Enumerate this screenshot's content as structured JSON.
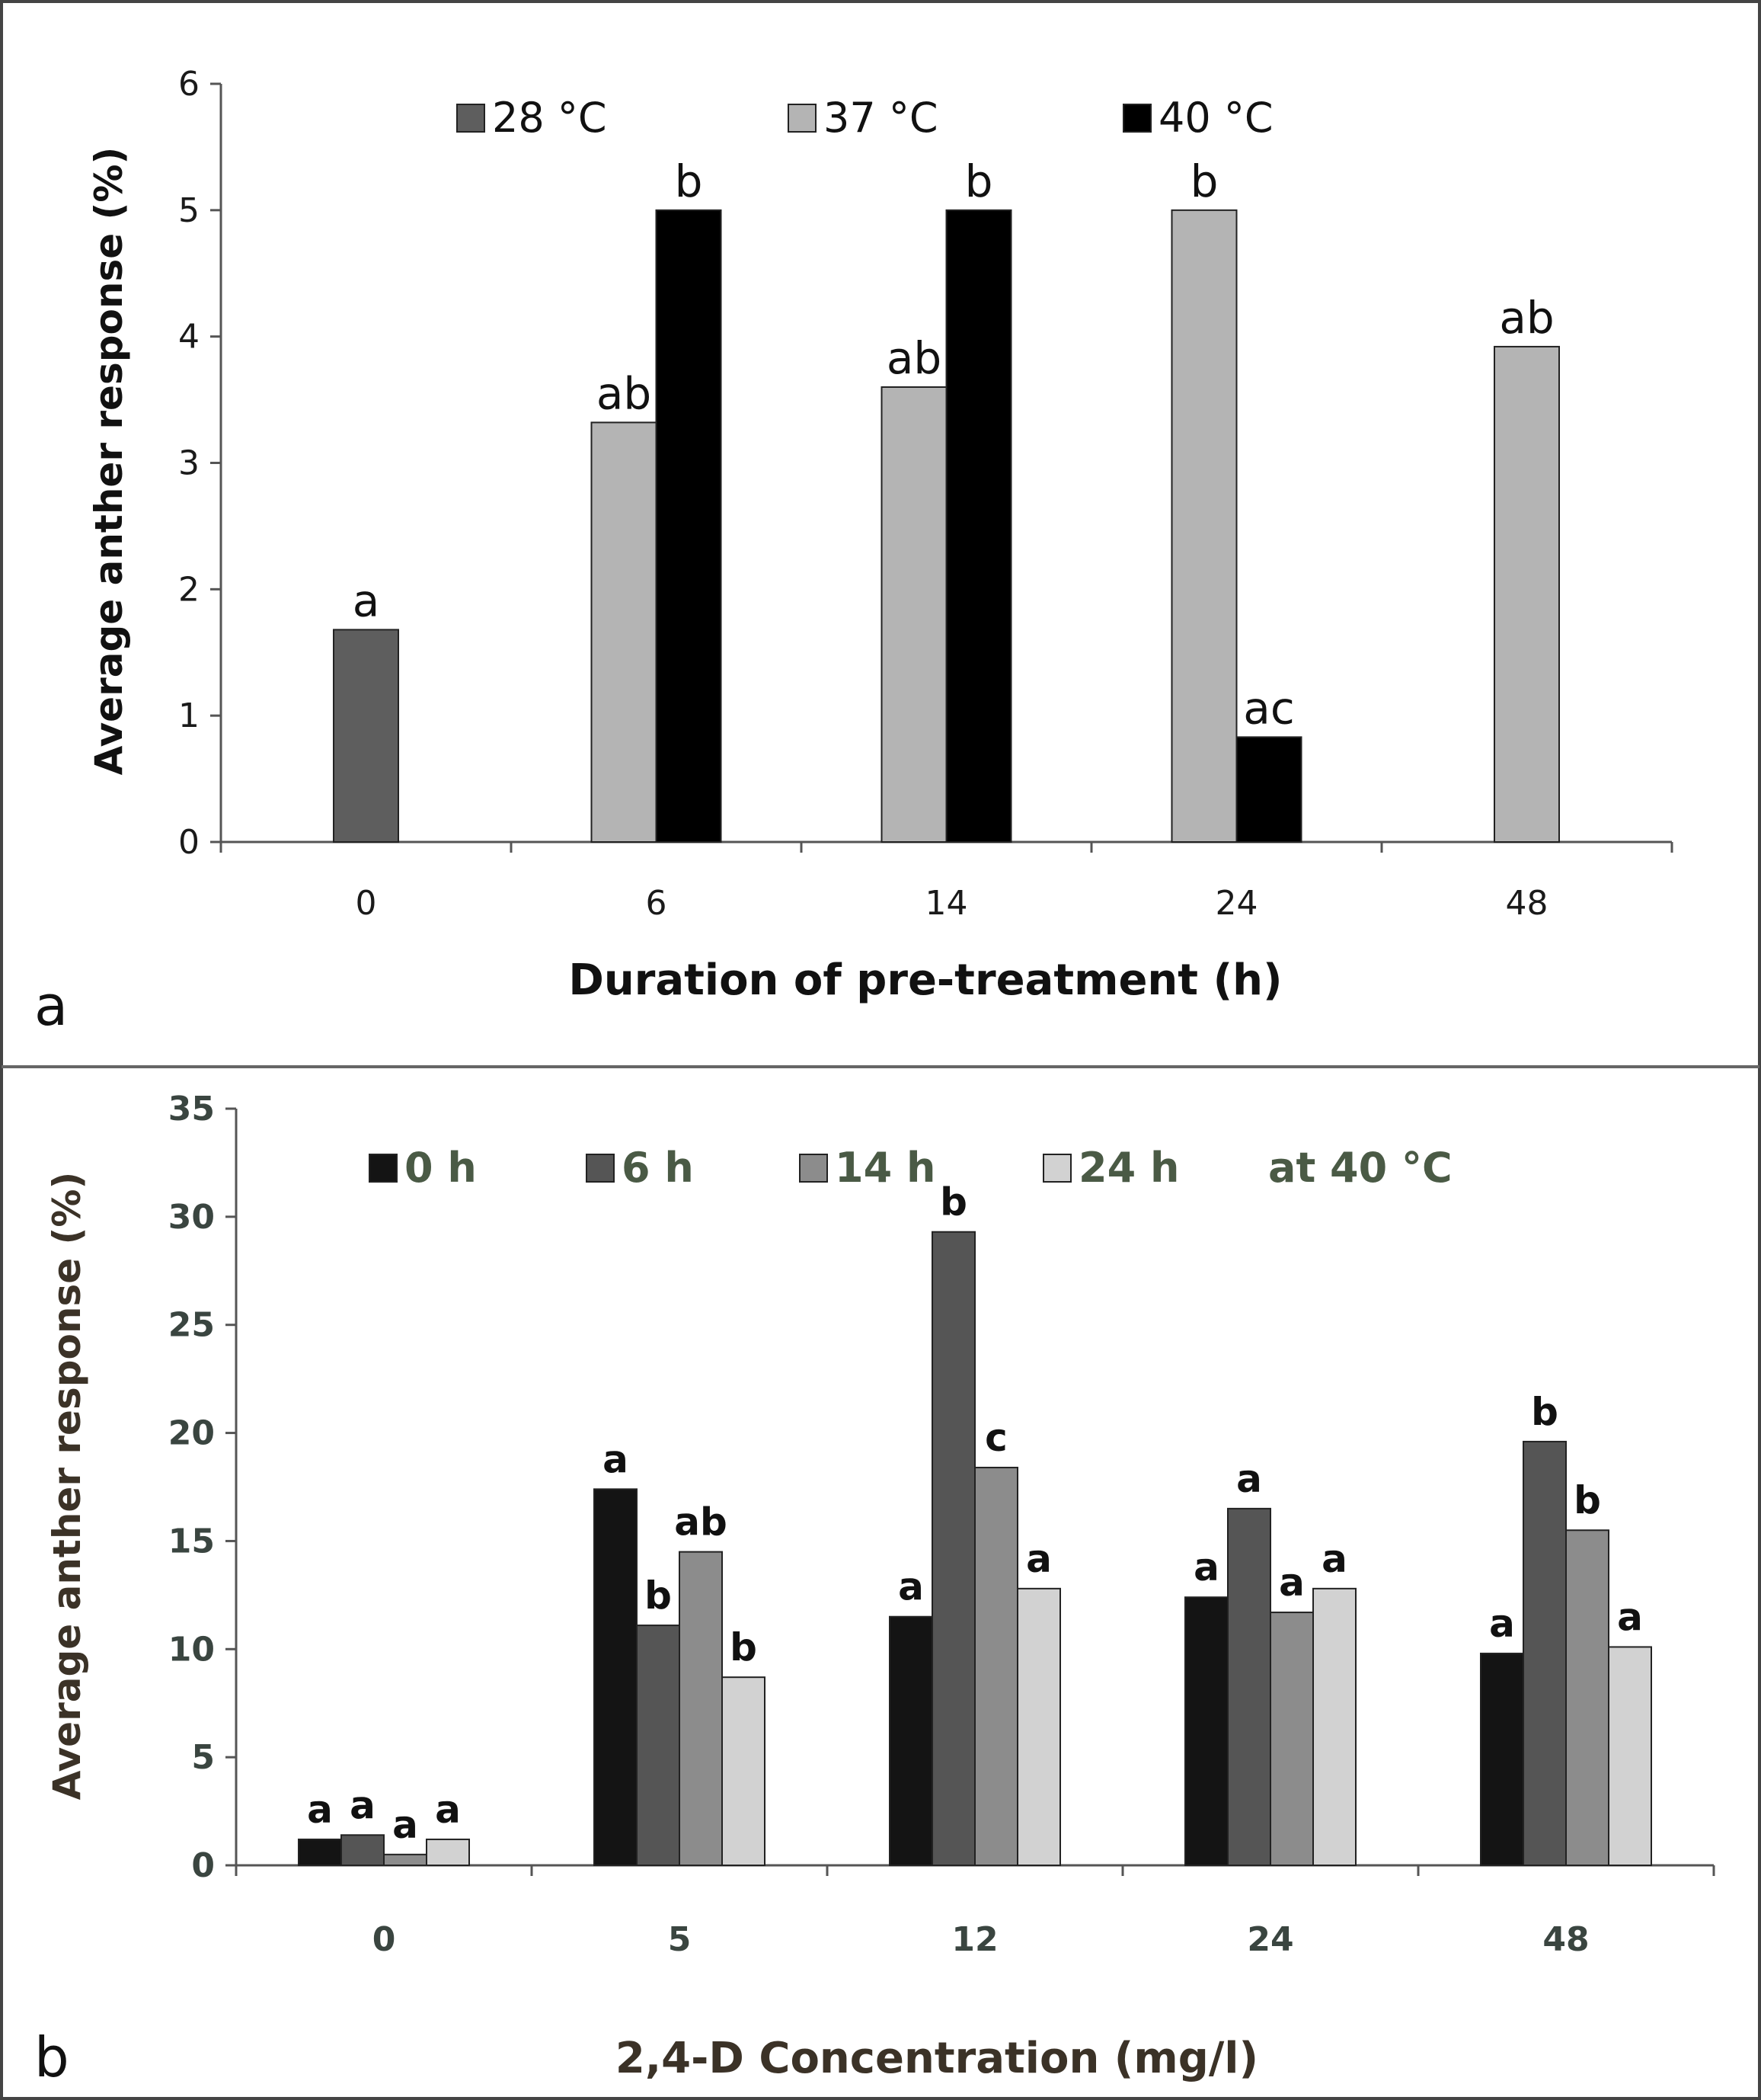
{
  "chart_data": [
    {
      "panel_label": "a",
      "type": "bar",
      "categories": [
        "0",
        "6",
        "14",
        "24",
        "48"
      ],
      "xlabel": "Duration of pre-treatment (h)",
      "ylabel": "Average anther response (%)",
      "ylim": [
        0,
        6
      ],
      "yticks": [
        "0",
        "1",
        "2",
        "3",
        "4",
        "5",
        "6"
      ],
      "legend_position": "top",
      "series": [
        {
          "name": "28 °C",
          "color": "#5e5e5e",
          "values": [
            1.68,
            null,
            null,
            null,
            null
          ],
          "labels": [
            "a",
            null,
            null,
            null,
            null
          ]
        },
        {
          "name": "37 °C",
          "color": "#b4b4b4",
          "values": [
            null,
            3.32,
            3.6,
            5.0,
            3.92
          ],
          "labels": [
            null,
            "ab",
            "ab",
            "b",
            "ab"
          ]
        },
        {
          "name": "40 °C",
          "color": "#000000",
          "values": [
            null,
            5.0,
            5.0,
            0.83,
            null
          ],
          "labels": [
            null,
            "b",
            "b",
            "ac",
            null
          ]
        }
      ]
    },
    {
      "panel_label": "b",
      "type": "bar",
      "categories": [
        "0",
        "5",
        "12",
        "24",
        "48"
      ],
      "xlabel": "2,4-D Concentration (mg/l)",
      "ylabel": "Average anther response (%)",
      "ylim": [
        0,
        35
      ],
      "yticks": [
        "0",
        "5",
        "10",
        "15",
        "20",
        "25",
        "30",
        "35"
      ],
      "legend_position": "top",
      "legend_note": "at 40 °C",
      "series": [
        {
          "name": "0 h",
          "color": "#141414",
          "values": [
            1.2,
            17.4,
            11.5,
            12.4,
            9.8
          ],
          "labels": [
            "a",
            "a",
            "a",
            "a",
            "a"
          ]
        },
        {
          "name": "6 h",
          "color": "#555555",
          "values": [
            1.4,
            11.1,
            29.3,
            16.5,
            19.6
          ],
          "labels": [
            "a",
            "b",
            "b",
            "a",
            "b"
          ]
        },
        {
          "name": "14 h",
          "color": "#8c8c8c",
          "values": [
            0.5,
            14.5,
            18.4,
            11.7,
            15.5
          ],
          "labels": [
            "a",
            "ab",
            "c",
            "a",
            "b"
          ]
        },
        {
          "name": "24 h",
          "color": "#d2d2d2",
          "values": [
            1.2,
            8.7,
            12.8,
            12.8,
            10.1
          ],
          "labels": [
            "a",
            "b",
            "a",
            "a",
            "a"
          ]
        }
      ]
    }
  ]
}
